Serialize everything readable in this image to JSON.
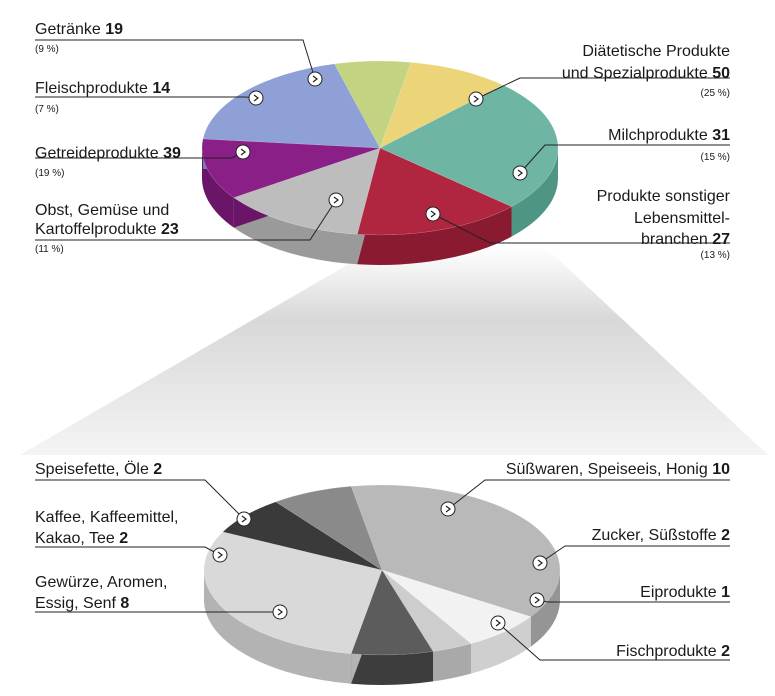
{
  "chart_data": [
    {
      "type": "pie",
      "title": "",
      "slices": [
        {
          "name": "Getränke",
          "value": 19,
          "percent": "(9 %)",
          "color": "#ecd479",
          "side": "#c9b45e",
          "icon": "chevron-down-icon"
        },
        {
          "name": "Diätetische Produkte und Spezialprodukte",
          "name_lines": [
            "Diätetische Produkte",
            "und Spezialprodukte"
          ],
          "value": 50,
          "percent": "(25 %)",
          "color": "#6fb5a4",
          "side": "#4f9584",
          "icon": "chevron-left-down-icon"
        },
        {
          "name": "Milchprodukte",
          "value": 31,
          "percent": "(15 %)",
          "color": "#b0253f",
          "side": "#8a1a30",
          "icon": "chevron-left-down-icon"
        },
        {
          "name": "Produkte sonstiger Lebensmittelbranchen",
          "name_lines": [
            "Produkte sonstiger",
            "Lebensmittel-",
            "branchen"
          ],
          "value": 27,
          "percent": "(13 %)",
          "color": "#bdbdbd",
          "side": "#9a9a9a",
          "icon": "chevron-up-left-icon"
        },
        {
          "name": "Obst, Gemüse und Kartoffelprodukte",
          "name_lines": [
            "Obst, Gemüse und",
            "Kartoffelprodukte"
          ],
          "value": 23,
          "percent": "(11 %)",
          "color": "#8a1f87",
          "side": "#6a1568",
          "icon": "chevron-right-down-icon"
        },
        {
          "name": "Getreideprodukte",
          "value": 39,
          "percent": "(19 %)",
          "color": "#8fa0d6",
          "side": "#6f80b6",
          "icon": "chevron-right-icon"
        },
        {
          "name": "Fleischprodukte",
          "value": 14,
          "percent": "(7 %)",
          "color": "#c2d382",
          "side": "#9fb062",
          "icon": "chevron-right-icon"
        }
      ]
    },
    {
      "type": "pie",
      "title": "",
      "slices": [
        {
          "name": "Süßwaren, Speiseeis, Honig",
          "value": 10,
          "color": "#b9b9b9",
          "side": "#959595",
          "icon": "chevron-left-down-icon"
        },
        {
          "name": "Zucker, Süßstoffe",
          "value": 2,
          "color": "#f2f2f2",
          "side": "#cfcfcf",
          "icon": "chevron-left-down-icon"
        },
        {
          "name": "Eiprodukte",
          "value": 1,
          "color": "#cdcdcd",
          "side": "#a9a9a9",
          "icon": "chevron-left-icon"
        },
        {
          "name": "Fischprodukte",
          "value": 2,
          "color": "#5c5c5c",
          "side": "#3d3d3d",
          "icon": "chevron-up-left-icon"
        },
        {
          "name": "Gewürze, Aromen, Essig, Senf",
          "name_lines": [
            "Gewürze, Aromen,",
            "Essig, Senf"
          ],
          "value": 8,
          "color": "#d9d9d9",
          "side": "#b3b3b3",
          "icon": "chevron-right-icon"
        },
        {
          "name": "Kaffee, Kaffeemittel, Kakao, Tee",
          "name_lines": [
            "Kaffee, Kaffeemittel,",
            "Kakao, Tee"
          ],
          "value": 2,
          "color": "#3a3a3a",
          "side": "#222222",
          "icon": "chevron-right-down-icon"
        },
        {
          "name": "Speisefette, Öle",
          "value": 2,
          "color": "#8a8a8a",
          "side": "#666666",
          "icon": "chevron-down-left-icon"
        }
      ]
    }
  ]
}
